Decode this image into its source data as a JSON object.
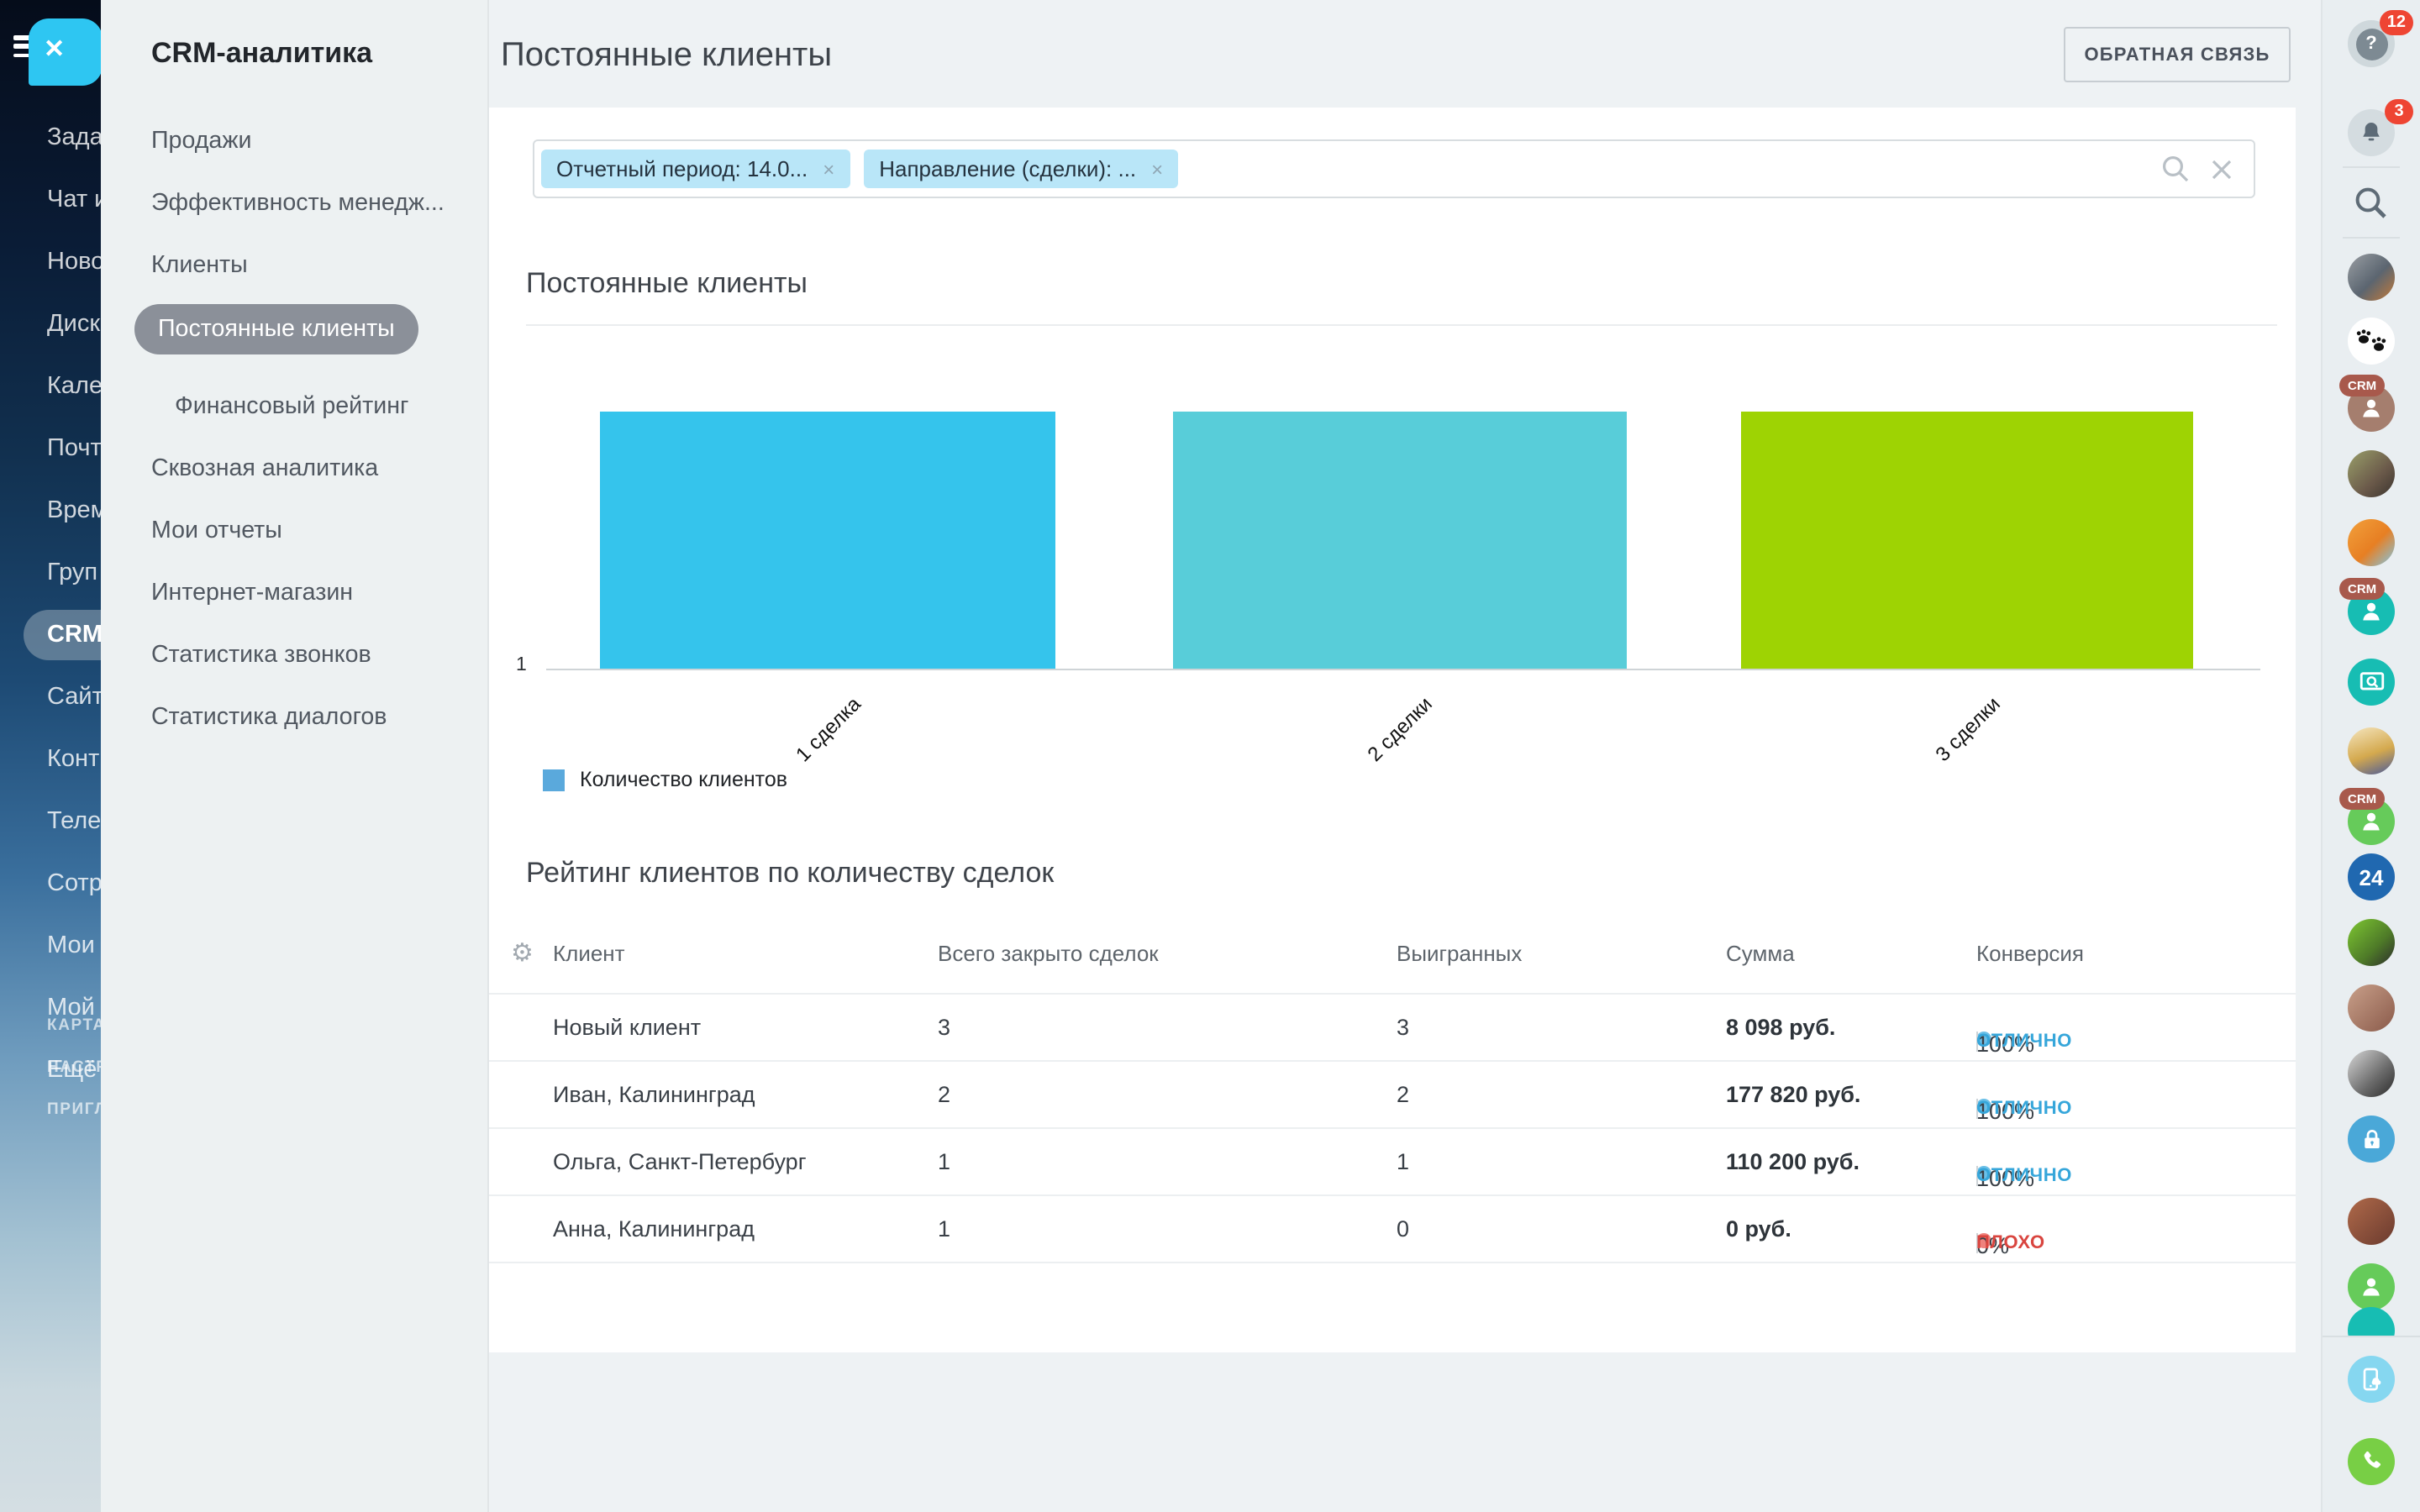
{
  "page": {
    "title": "Постоянные клиенты",
    "feedback_button": "ОБРАТНАЯ СВЯЗЬ"
  },
  "left_rail": {
    "items": [
      "Зада",
      "Чат и",
      "Ново",
      "Диск",
      "Кале",
      "Почт",
      "Врем",
      "Груп",
      "CRM",
      "Сайт",
      "Конт",
      "Теле",
      "Сотр",
      "Мои",
      "Мой",
      "Ещё"
    ],
    "active_item": "CRM",
    "footer_items": [
      "КАРТА",
      "НАСТР",
      "ПРИГЛ"
    ]
  },
  "crm_panel": {
    "title": "CRM-аналитика",
    "items": [
      {
        "label": "Продажи"
      },
      {
        "label": "Эффективность менедж..."
      },
      {
        "label": "Клиенты"
      },
      {
        "label": "Постоянные клиенты",
        "active": true
      },
      {
        "label": "Финансовый рейтинг",
        "indent": true
      },
      {
        "label": "Сквозная аналитика"
      },
      {
        "label": "Мои отчеты"
      },
      {
        "label": "Интернет-магазин"
      },
      {
        "label": "Статистика звонков"
      },
      {
        "label": "Статистика диалогов"
      }
    ]
  },
  "filter_bar": {
    "chips": [
      {
        "label": "Отчетный период: 14.0...",
        "remove": "×"
      },
      {
        "label": "Направление (сделки): ...",
        "remove": "×"
      }
    ]
  },
  "chart_section": {
    "title": "Постоянные клиенты"
  },
  "chart_data": {
    "type": "bar",
    "title": "Постоянные клиенты",
    "categories": [
      "1 сделка",
      "2 сделки",
      "3 сделки"
    ],
    "values": [
      1,
      1,
      1
    ],
    "bar_colors": [
      "#35c4ec",
      "#58cdd9",
      "#9ed303"
    ],
    "y_ticks": [
      "1"
    ],
    "ylim": [
      0,
      1
    ],
    "xlabel": "",
    "ylabel": "",
    "grid": false,
    "legend": [
      {
        "label": "Количество клиентов",
        "color": "#5aa9dc"
      }
    ],
    "legend_position": "bottom-left"
  },
  "table_section": {
    "title": "Рейтинг клиентов по количеству сделок",
    "columns": [
      "Клиент",
      "Всего закрыто сделок",
      "Выигранных",
      "Сумма",
      "Конверсия"
    ],
    "rows": [
      {
        "client": "Новый клиент",
        "total": "3",
        "won": "3",
        "sum": "8 098 руб.",
        "conversion": "100%",
        "status": "ОТЛИЧНО",
        "status_type": "good"
      },
      {
        "client": "Иван, Калининград",
        "total": "2",
        "won": "2",
        "sum": "177 820 руб.",
        "conversion": "100%",
        "status": "ОТЛИЧНО",
        "status_type": "good"
      },
      {
        "client": "Ольга, Санкт-Петербург",
        "total": "1",
        "won": "1",
        "sum": "110 200 руб.",
        "conversion": "100%",
        "status": "ОТЛИЧНО",
        "status_type": "good"
      },
      {
        "client": "Анна, Калининград",
        "total": "1",
        "won": "0",
        "sum": "0 руб.",
        "conversion": "0%",
        "status": "ПЛОХО",
        "status_type": "bad"
      }
    ]
  },
  "right_rail": {
    "help_badge": "12",
    "notification_badge": "3",
    "bitrix24_logo": "24",
    "crm_badge": "CRM",
    "icons": [
      "help",
      "notifications",
      "search",
      "avatar-photo",
      "paws-avatar",
      "person-avatar",
      "screen-share",
      "bitrix24-logo",
      "lock",
      "mobile-app",
      "call"
    ]
  },
  "colors": {
    "chip_bg": "#b9e6f8",
    "status_good": "#36a6da",
    "status_bad": "#d9453f",
    "badge_red": "#ee4533",
    "accent_blue": "#2ec6f2"
  }
}
